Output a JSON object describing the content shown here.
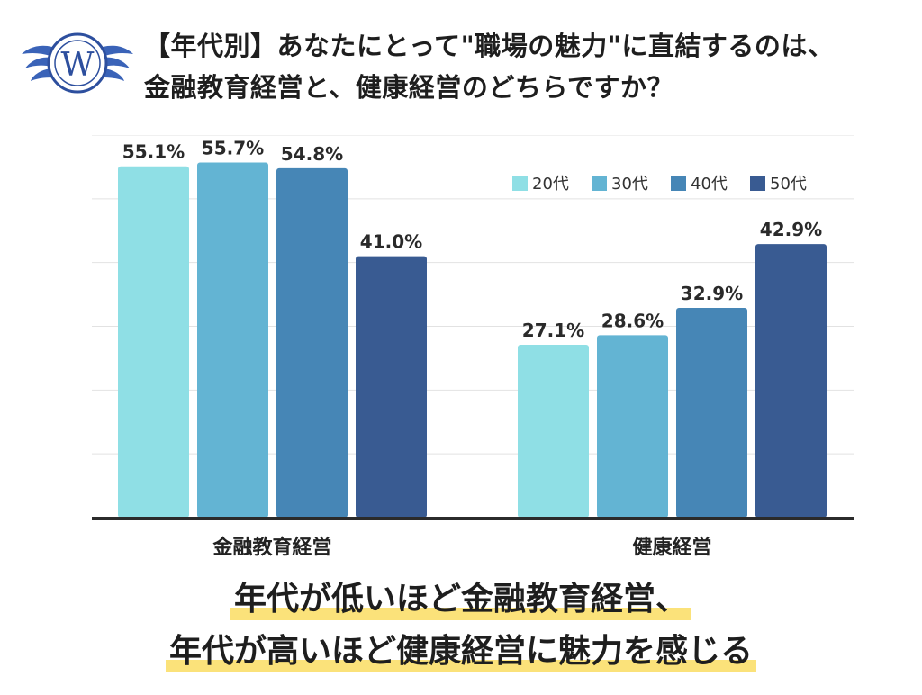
{
  "title": {
    "line1": "【年代別】あなたにとって\"職場の魅力\"に直結するのは、",
    "line2": "金融教育経営と、健康経営のどちらですか？"
  },
  "logo": {
    "letter": "W",
    "colors": {
      "primary": "#2d4f9e",
      "wing": "#3a63b8"
    }
  },
  "chart_data": {
    "type": "bar",
    "categories": [
      "金融教育経営",
      "健康経営"
    ],
    "series": [
      {
        "name": "20代",
        "values": [
          55.1,
          27.1
        ],
        "labels": [
          "55.1%",
          "27.1%"
        ],
        "color": "#8fdfe5"
      },
      {
        "name": "30代",
        "values": [
          55.7,
          28.6
        ],
        "labels": [
          "55.7%",
          "28.6%"
        ],
        "color": "#63b4d3"
      },
      {
        "name": "40代",
        "values": [
          54.8,
          32.9
        ],
        "labels": [
          "54.8%",
          "32.9%"
        ],
        "color": "#4686b6"
      },
      {
        "name": "50代",
        "values": [
          41.0,
          42.9
        ],
        "labels": [
          "41.0%",
          "42.9%"
        ],
        "color": "#395b92"
      }
    ],
    "ylim": [
      0,
      60
    ],
    "grid": true,
    "legend": "top-right",
    "unit": "%"
  },
  "conclusion": {
    "line1": "年代が低いほど金融教育経営、",
    "line2": "年代が高いほど健康経営に魅力を感じる"
  }
}
